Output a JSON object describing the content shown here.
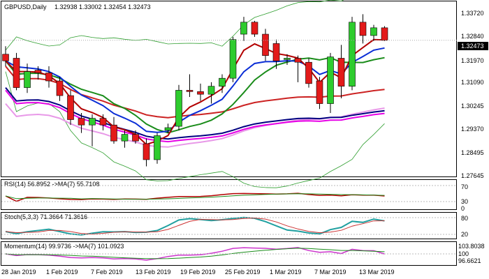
{
  "header": {
    "symbol": "GBPUSD,Daily",
    "ohlc": "1.32938 1.33002 1.32454 1.32473"
  },
  "price_axis": {
    "labels": [
      "1.33720",
      "1.32840",
      "1.31970",
      "1.31090",
      "1.30245",
      "1.29370",
      "1.28495",
      "1.27645"
    ],
    "current_price": "1.32473"
  },
  "date_axis": {
    "labels": [
      "28 Jan 2019",
      "1 Feb 2019",
      "7 Feb 2019",
      "13 Feb 2019",
      "19 Feb 2019",
      "25 Feb 2019",
      "1 Mar 2019",
      "7 Mar 2019",
      "13 Mar 2019"
    ]
  },
  "rsi_panel": {
    "label": "RSI(14) 56.8952 ->MA(7) 55.7108",
    "levels": [
      "70",
      "30",
      "0"
    ]
  },
  "stoch_panel": {
    "label": "Stoch(5,3,3) 71.3664 71.3616",
    "levels": [
      "80",
      "20"
    ]
  },
  "momentum_panel": {
    "label": "Momentum(14) 99.9736 ->MA(7) 101.0923",
    "levels": [
      "103.8038",
      "100",
      "96.6621"
    ]
  },
  "colors": {
    "bull": "#2ecc2e",
    "bear": "#e31a1a",
    "price_line": "#000000",
    "ma_fast": "#b30000",
    "ma_green": "#1a8c1a",
    "ma_blue": "#0a2dd6",
    "ma_pink": "#e899e8",
    "ma_red_flat": "#cc2222",
    "ma_navy": "#000080",
    "ma_magenta": "#e600e6",
    "bollinger": "#2e9e2e",
    "rsi_line": "#b30000",
    "rsi_ma": "#1a8c1a",
    "stoch_main": "#20a0a0",
    "stoch_signal": "#cc3333",
    "mom_line": "#cc33cc",
    "mom_ma": "#1a8c1a"
  },
  "chart_data": {
    "type": "candlestick",
    "title": "GBPUSD,Daily",
    "dates": [
      "28 Jan 2019",
      "1 Feb 2019",
      "7 Feb 2019",
      "13 Feb 2019",
      "19 Feb 2019",
      "25 Feb 2019",
      "1 Mar 2019",
      "7 Mar 2019",
      "13 Mar 2019"
    ],
    "ylim": [
      1.2745,
      1.3385
    ],
    "candles": [
      {
        "o": 1.3195,
        "h": 1.3225,
        "l": 1.315,
        "c": 1.317
      },
      {
        "o": 1.318,
        "h": 1.32,
        "l": 1.306,
        "c": 1.307
      },
      {
        "o": 1.307,
        "h": 1.316,
        "l": 1.305,
        "c": 1.313
      },
      {
        "o": 1.3135,
        "h": 1.315,
        "l": 1.31,
        "c": 1.3125
      },
      {
        "o": 1.3125,
        "h": 1.315,
        "l": 1.307,
        "c": 1.3095
      },
      {
        "o": 1.3095,
        "h": 1.311,
        "l": 1.302,
        "c": 1.304
      },
      {
        "o": 1.304,
        "h": 1.306,
        "l": 1.293,
        "c": 1.295
      },
      {
        "o": 1.2955,
        "h": 1.2975,
        "l": 1.29,
        "c": 1.293
      },
      {
        "o": 1.293,
        "h": 1.297,
        "l": 1.285,
        "c": 1.2955
      },
      {
        "o": 1.2955,
        "h": 1.297,
        "l": 1.291,
        "c": 1.293
      },
      {
        "o": 1.293,
        "h": 1.296,
        "l": 1.286,
        "c": 1.287
      },
      {
        "o": 1.287,
        "h": 1.291,
        "l": 1.2845,
        "c": 1.2895
      },
      {
        "o": 1.2895,
        "h": 1.291,
        "l": 1.286,
        "c": 1.287
      },
      {
        "o": 1.286,
        "h": 1.288,
        "l": 1.2775,
        "c": 1.28
      },
      {
        "o": 1.28,
        "h": 1.29,
        "l": 1.2785,
        "c": 1.289
      },
      {
        "o": 1.291,
        "h": 1.2935,
        "l": 1.29,
        "c": 1.292
      },
      {
        "o": 1.2925,
        "h": 1.308,
        "l": 1.291,
        "c": 1.306
      },
      {
        "o": 1.306,
        "h": 1.312,
        "l": 1.3035,
        "c": 1.3055
      },
      {
        "o": 1.3055,
        "h": 1.3085,
        "l": 1.302,
        "c": 1.3045
      },
      {
        "o": 1.3045,
        "h": 1.309,
        "l": 1.301,
        "c": 1.3075
      },
      {
        "o": 1.3075,
        "h": 1.312,
        "l": 1.305,
        "c": 1.3105
      },
      {
        "o": 1.3105,
        "h": 1.326,
        "l": 1.309,
        "c": 1.325
      },
      {
        "o": 1.327,
        "h": 1.3335,
        "l": 1.3245,
        "c": 1.3315
      },
      {
        "o": 1.3315,
        "h": 1.332,
        "l": 1.326,
        "c": 1.327
      },
      {
        "o": 1.327,
        "h": 1.329,
        "l": 1.317,
        "c": 1.319
      },
      {
        "o": 1.3235,
        "h": 1.325,
        "l": 1.314,
        "c": 1.317
      },
      {
        "o": 1.3175,
        "h": 1.3195,
        "l": 1.3155,
        "c": 1.318
      },
      {
        "o": 1.318,
        "h": 1.319,
        "l": 1.309,
        "c": 1.3165
      },
      {
        "o": 1.3165,
        "h": 1.318,
        "l": 1.307,
        "c": 1.3085
      },
      {
        "o": 1.3095,
        "h": 1.311,
        "l": 1.299,
        "c": 1.301
      },
      {
        "o": 1.301,
        "h": 1.32,
        "l": 1.2975,
        "c": 1.3185
      },
      {
        "o": 1.318,
        "h": 1.323,
        "l": 1.303,
        "c": 1.3075
      },
      {
        "o": 1.3075,
        "h": 1.3335,
        "l": 1.306,
        "c": 1.3315
      },
      {
        "o": 1.3315,
        "h": 1.3345,
        "l": 1.3235,
        "c": 1.3265
      },
      {
        "o": 1.3265,
        "h": 1.3305,
        "l": 1.3245,
        "c": 1.3294
      },
      {
        "o": 1.3294,
        "h": 1.33,
        "l": 1.3245,
        "c": 1.3247
      }
    ]
  }
}
